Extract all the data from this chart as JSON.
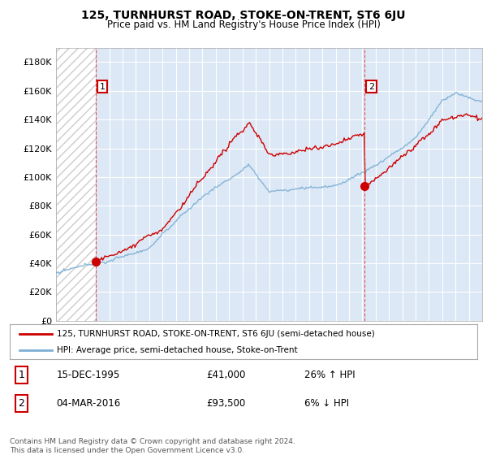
{
  "title": "125, TURNHURST ROAD, STOKE-ON-TRENT, ST6 6JU",
  "subtitle": "Price paid vs. HM Land Registry's House Price Index (HPI)",
  "legend_line1": "125, TURNHURST ROAD, STOKE-ON-TRENT, ST6 6JU (semi-detached house)",
  "legend_line2": "HPI: Average price, semi-detached house, Stoke-on-Trent",
  "transaction1_date": "15-DEC-1995",
  "transaction1_price": "£41,000",
  "transaction1_hpi": "26% ↑ HPI",
  "transaction1_x": 1995.96,
  "transaction1_y": 41000,
  "transaction2_date": "04-MAR-2016",
  "transaction2_price": "£93,500",
  "transaction2_hpi": "6% ↓ HPI",
  "transaction2_x": 2016.17,
  "transaction2_y": 93500,
  "ylim_min": 0,
  "ylim_max": 190000,
  "yticks": [
    0,
    20000,
    40000,
    60000,
    80000,
    100000,
    120000,
    140000,
    160000,
    180000
  ],
  "ytick_labels": [
    "£0",
    "£20K",
    "£40K",
    "£60K",
    "£80K",
    "£100K",
    "£120K",
    "£140K",
    "£160K",
    "£180K"
  ],
  "hpi_color": "#7bafd4",
  "price_color": "#cc0000",
  "background_color": "#ffffff",
  "plot_bg_color": "#dce8f5",
  "grid_color": "#ffffff",
  "vline_color": "#dd4444",
  "footnote": "Contains HM Land Registry data © Crown copyright and database right 2024.\nThis data is licensed under the Open Government Licence v3.0.",
  "xlim_min": 1993.0,
  "xlim_max": 2025.0
}
